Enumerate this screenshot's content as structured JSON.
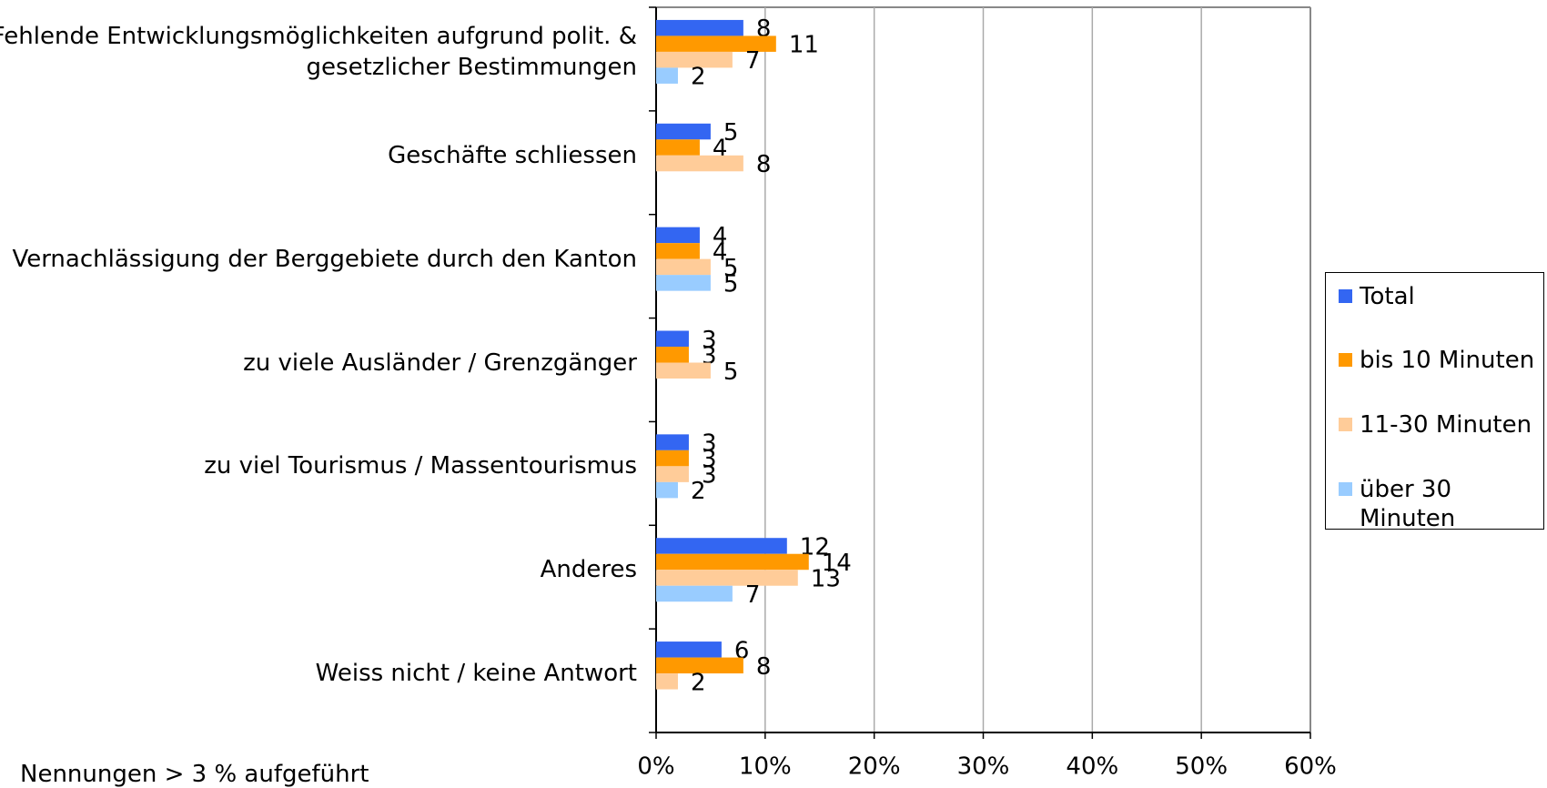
{
  "chart_data": {
    "type": "hbar",
    "categories": [
      "Fehlende Entwicklungsmöglichkeiten aufgrund polit. &\ngesetzlicher Bestimmungen",
      "Geschäfte schliessen",
      "Vernachlässigung der Berggebiete durch den Kanton",
      "zu viele Ausländer / Grenzgänger",
      "zu viel Tourismus / Massentourismus",
      "Anderes",
      "Weiss nicht / keine Antwort"
    ],
    "series": [
      {
        "name": "Total",
        "color": "#3366f2",
        "values": [
          8,
          5,
          4,
          3,
          3,
          12,
          6
        ]
      },
      {
        "name": "bis 10 Minuten",
        "color": "#ff9900",
        "values": [
          11,
          4,
          4,
          3,
          3,
          14,
          8
        ]
      },
      {
        "name": "11-30 Minuten",
        "color": "#ffcc99",
        "values": [
          7,
          8,
          5,
          5,
          3,
          13,
          2
        ]
      },
      {
        "name": "über 30\nMinuten",
        "color": "#99ccff",
        "values": [
          2,
          null,
          5,
          null,
          2,
          7,
          null
        ]
      }
    ],
    "xlim": [
      0,
      60
    ],
    "xticks": [
      {
        "value": 0,
        "label": "0%"
      },
      {
        "value": 10,
        "label": "10%"
      },
      {
        "value": 20,
        "label": "20%"
      },
      {
        "value": 30,
        "label": "30%"
      },
      {
        "value": 40,
        "label": "40%"
      },
      {
        "value": 50,
        "label": "50%"
      },
      {
        "value": 60,
        "label": "60%"
      }
    ],
    "grid": true,
    "legend": "right",
    "footnote": "Nennungen > 3 % aufgeführt"
  }
}
